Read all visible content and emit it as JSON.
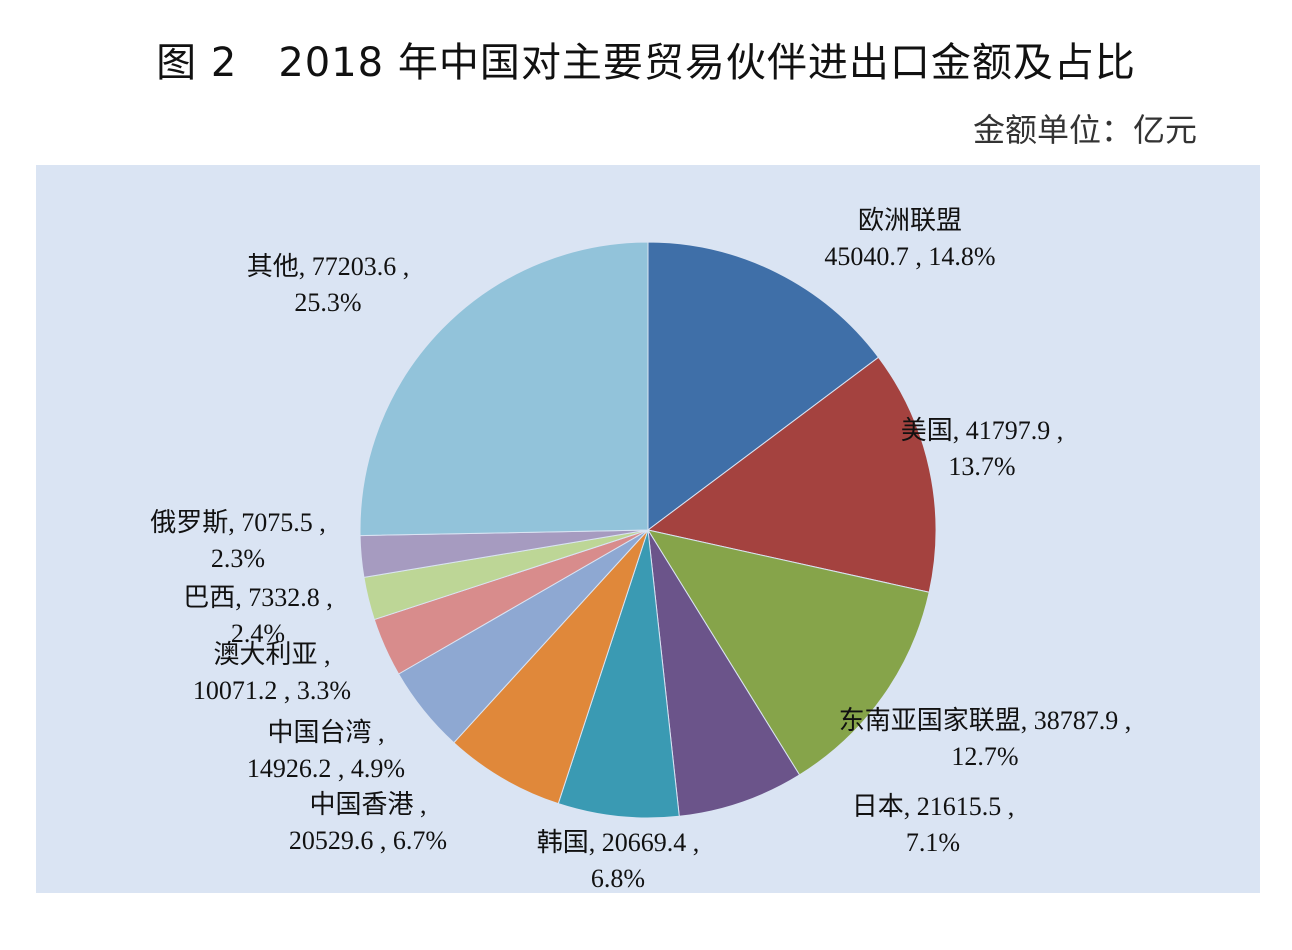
{
  "chart_data": {
    "type": "pie",
    "title": "图 2　2018 年中国对主要贸易伙伴进出口金额及占比",
    "unit_note": "金额单位：亿元",
    "start": "top",
    "direction": "clockwise",
    "slices": [
      {
        "name": "欧洲联盟",
        "value": 45040.7,
        "value_label": "45040.7",
        "percent": "14.8%",
        "color": "#3f6fa8"
      },
      {
        "name": "美国",
        "value": 41797.9,
        "value_label": "41797.9",
        "percent": "13.7%",
        "color": "#a4423f"
      },
      {
        "name": "东南亚国家联盟",
        "value": 38787.9,
        "value_label": "38787.9",
        "percent": "12.7%",
        "color": "#86a44a"
      },
      {
        "name": "日本",
        "value": 21615.5,
        "value_label": "21615.5",
        "percent": "7.1%",
        "color": "#6b548a"
      },
      {
        "name": "韩国",
        "value": 20669.4,
        "value_label": "20669.4",
        "percent": "6.8%",
        "color": "#3a9ab3"
      },
      {
        "name": "中国香港",
        "value": 20529.6,
        "value_label": "20529.6",
        "percent": "6.7%",
        "color": "#e0883a"
      },
      {
        "name": "中国台湾",
        "value": 14926.2,
        "value_label": "14926.2",
        "percent": "4.9%",
        "color": "#8ea8d2"
      },
      {
        "name": "澳大利亚",
        "value": 10071.2,
        "value_label": "10071.2",
        "percent": "3.3%",
        "color": "#d88c8c"
      },
      {
        "name": "巴西",
        "value": 7332.8,
        "value_label": "7332.8",
        "percent": "2.4%",
        "color": "#bdd696"
      },
      {
        "name": "俄罗斯",
        "value": 7075.5,
        "value_label": "7075.5",
        "percent": "2.3%",
        "color": "#a69bc0"
      },
      {
        "name": "其他",
        "value": 77203.6,
        "value_label": "77203.6",
        "percent": "25.3%",
        "color": "#92c3da"
      }
    ]
  }
}
